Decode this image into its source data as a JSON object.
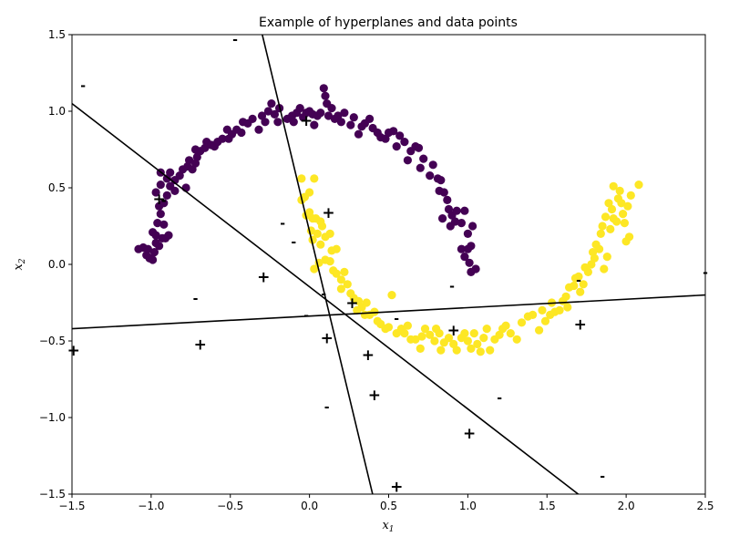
{
  "chart_data": {
    "type": "scatter",
    "title": "Example of hyperplanes and data points",
    "xlabel": "x",
    "xlabel_sub": "1",
    "ylabel": "x",
    "ylabel_sub": "2",
    "xlim": [
      -1.5,
      2.5
    ],
    "ylim": [
      -1.5,
      1.5
    ],
    "xticks": [
      -1.5,
      -1.0,
      -0.5,
      0.0,
      0.5,
      1.0,
      1.5,
      2.0,
      2.5
    ],
    "yticks": [
      -1.5,
      -1.0,
      -0.5,
      0.0,
      0.5,
      1.0,
      1.5
    ],
    "grid": false,
    "legend": "none",
    "colors": {
      "class0": "#440154",
      "class1": "#fde725",
      "lines": "#000000",
      "markers": "#000000"
    },
    "series": [
      {
        "class": 0,
        "color": "#440154",
        "points": [
          [
            -1.08,
            0.1
          ],
          [
            -1.05,
            0.11
          ],
          [
            -1.03,
            0.06
          ],
          [
            -1.02,
            0.1
          ],
          [
            -1.01,
            0.04
          ],
          [
            -0.99,
            0.03
          ],
          [
            -0.98,
            0.08
          ],
          [
            -0.97,
            0.14
          ],
          [
            -0.99,
            0.21
          ],
          [
            -0.97,
            0.19
          ],
          [
            -0.95,
            0.12
          ],
          [
            -0.93,
            0.17
          ],
          [
            -0.91,
            0.17
          ],
          [
            -0.89,
            0.19
          ],
          [
            -0.96,
            0.27
          ],
          [
            -0.94,
            0.33
          ],
          [
            -0.92,
            0.26
          ],
          [
            -0.95,
            0.38
          ],
          [
            -0.97,
            0.47
          ],
          [
            -0.92,
            0.4
          ],
          [
            -0.9,
            0.45
          ],
          [
            -0.94,
            0.52
          ],
          [
            -0.9,
            0.56
          ],
          [
            -0.94,
            0.6
          ],
          [
            -0.88,
            0.51
          ],
          [
            -0.85,
            0.48
          ],
          [
            -0.88,
            0.6
          ],
          [
            -0.85,
            0.55
          ],
          [
            -0.82,
            0.58
          ],
          [
            -0.78,
            0.5
          ],
          [
            -0.8,
            0.62
          ],
          [
            -0.77,
            0.64
          ],
          [
            -0.74,
            0.62
          ],
          [
            -0.76,
            0.68
          ],
          [
            -0.72,
            0.66
          ],
          [
            -0.71,
            0.7
          ],
          [
            -0.72,
            0.75
          ],
          [
            -0.69,
            0.74
          ],
          [
            -0.66,
            0.76
          ],
          [
            -0.65,
            0.8
          ],
          [
            -0.62,
            0.78
          ],
          [
            -0.6,
            0.77
          ],
          [
            -0.58,
            0.8
          ],
          [
            -0.55,
            0.82
          ],
          [
            -0.51,
            0.82
          ],
          [
            -0.52,
            0.88
          ],
          [
            -0.49,
            0.85
          ],
          [
            -0.46,
            0.88
          ],
          [
            -0.43,
            0.86
          ],
          [
            -0.42,
            0.93
          ],
          [
            -0.39,
            0.92
          ],
          [
            -0.36,
            0.95
          ],
          [
            -0.32,
            0.88
          ],
          [
            -0.3,
            0.97
          ],
          [
            -0.28,
            0.93
          ],
          [
            -0.26,
            1.0
          ],
          [
            -0.24,
            1.05
          ],
          [
            -0.22,
            0.98
          ],
          [
            -0.2,
            0.93
          ],
          [
            -0.19,
            1.02
          ],
          [
            -0.14,
            0.95
          ],
          [
            -0.11,
            0.97
          ],
          [
            -0.1,
            0.93
          ],
          [
            -0.08,
            0.99
          ],
          [
            -0.06,
            1.02
          ],
          [
            -0.04,
            0.96
          ],
          [
            -0.02,
            0.99
          ],
          [
            0.0,
            1.0
          ],
          [
            0.02,
            0.98
          ],
          [
            0.03,
            0.91
          ],
          [
            0.05,
            0.97
          ],
          [
            0.07,
            0.99
          ],
          [
            0.09,
            1.15
          ],
          [
            0.1,
            1.1
          ],
          [
            0.11,
            1.05
          ],
          [
            0.12,
            0.97
          ],
          [
            0.14,
            1.02
          ],
          [
            0.16,
            0.95
          ],
          [
            0.18,
            0.97
          ],
          [
            0.2,
            0.93
          ],
          [
            0.22,
            0.99
          ],
          [
            0.26,
            0.91
          ],
          [
            0.28,
            0.96
          ],
          [
            0.31,
            0.85
          ],
          [
            0.33,
            0.9
          ],
          [
            0.35,
            0.92
          ],
          [
            0.38,
            0.95
          ],
          [
            0.4,
            0.89
          ],
          [
            0.43,
            0.86
          ],
          [
            0.45,
            0.83
          ],
          [
            0.48,
            0.82
          ],
          [
            0.5,
            0.86
          ],
          [
            0.53,
            0.87
          ],
          [
            0.55,
            0.77
          ],
          [
            0.57,
            0.84
          ],
          [
            0.6,
            0.8
          ],
          [
            0.62,
            0.68
          ],
          [
            0.64,
            0.74
          ],
          [
            0.67,
            0.77
          ],
          [
            0.69,
            0.76
          ],
          [
            0.7,
            0.63
          ],
          [
            0.72,
            0.69
          ],
          [
            0.76,
            0.58
          ],
          [
            0.78,
            0.65
          ],
          [
            0.81,
            0.56
          ],
          [
            0.83,
            0.55
          ],
          [
            0.82,
            0.48
          ],
          [
            0.85,
            0.47
          ],
          [
            0.87,
            0.42
          ],
          [
            0.88,
            0.36
          ],
          [
            0.84,
            0.3
          ],
          [
            0.9,
            0.32
          ],
          [
            0.93,
            0.35
          ],
          [
            0.89,
            0.25
          ],
          [
            0.92,
            0.28
          ],
          [
            0.96,
            0.27
          ],
          [
            0.98,
            0.35
          ],
          [
            1.0,
            0.2
          ],
          [
            1.03,
            0.25
          ],
          [
            0.96,
            0.1
          ],
          [
            1.0,
            0.1
          ],
          [
            1.02,
            0.12
          ],
          [
            0.98,
            0.05
          ],
          [
            1.01,
            0.01
          ],
          [
            1.05,
            -0.03
          ],
          [
            1.02,
            -0.05
          ]
        ]
      },
      {
        "class": 1,
        "color": "#fde725",
        "points": [
          [
            -0.05,
            0.56
          ],
          [
            0.03,
            0.56
          ],
          [
            -0.03,
            0.44
          ],
          [
            0.0,
            0.47
          ],
          [
            -0.05,
            0.42
          ],
          [
            0.0,
            0.34
          ],
          [
            0.02,
            0.3
          ],
          [
            -0.02,
            0.32
          ],
          [
            0.04,
            0.3
          ],
          [
            0.07,
            0.28
          ],
          [
            0.01,
            0.22
          ],
          [
            0.05,
            0.2
          ],
          [
            0.08,
            0.25
          ],
          [
            0.02,
            0.16
          ],
          [
            0.07,
            0.13
          ],
          [
            0.1,
            0.18
          ],
          [
            0.13,
            0.2
          ],
          [
            0.14,
            0.09
          ],
          [
            0.17,
            0.1
          ],
          [
            0.1,
            0.03
          ],
          [
            0.13,
            0.02
          ],
          [
            0.15,
            -0.04
          ],
          [
            0.06,
            0.01
          ],
          [
            0.03,
            -0.03
          ],
          [
            0.17,
            -0.06
          ],
          [
            0.2,
            -0.1
          ],
          [
            0.22,
            -0.05
          ],
          [
            0.24,
            -0.13
          ],
          [
            0.2,
            -0.16
          ],
          [
            0.26,
            -0.19
          ],
          [
            0.28,
            -0.22
          ],
          [
            0.31,
            -0.24
          ],
          [
            0.33,
            -0.28
          ],
          [
            0.3,
            -0.3
          ],
          [
            0.36,
            -0.25
          ],
          [
            0.38,
            -0.33
          ],
          [
            0.35,
            -0.33
          ],
          [
            0.41,
            -0.31
          ],
          [
            0.43,
            -0.37
          ],
          [
            0.45,
            -0.39
          ],
          [
            0.48,
            -0.42
          ],
          [
            0.5,
            -0.41
          ],
          [
            0.52,
            -0.2
          ],
          [
            0.55,
            -0.45
          ],
          [
            0.58,
            -0.42
          ],
          [
            0.6,
            -0.45
          ],
          [
            0.62,
            -0.4
          ],
          [
            0.64,
            -0.49
          ],
          [
            0.67,
            -0.49
          ],
          [
            0.7,
            -0.55
          ],
          [
            0.71,
            -0.47
          ],
          [
            0.73,
            -0.42
          ],
          [
            0.76,
            -0.46
          ],
          [
            0.79,
            -0.5
          ],
          [
            0.8,
            -0.42
          ],
          [
            0.82,
            -0.45
          ],
          [
            0.83,
            -0.56
          ],
          [
            0.85,
            -0.51
          ],
          [
            0.88,
            -0.48
          ],
          [
            0.91,
            -0.52
          ],
          [
            0.93,
            -0.56
          ],
          [
            0.96,
            -0.48
          ],
          [
            0.98,
            -0.45
          ],
          [
            1.0,
            -0.5
          ],
          [
            1.02,
            -0.55
          ],
          [
            1.04,
            -0.45
          ],
          [
            1.06,
            -0.52
          ],
          [
            1.08,
            -0.57
          ],
          [
            1.1,
            -0.48
          ],
          [
            1.12,
            -0.42
          ],
          [
            1.14,
            -0.56
          ],
          [
            1.17,
            -0.49
          ],
          [
            1.2,
            -0.46
          ],
          [
            1.22,
            -0.42
          ],
          [
            1.24,
            -0.4
          ],
          [
            1.27,
            -0.45
          ],
          [
            1.31,
            -0.49
          ],
          [
            1.34,
            -0.38
          ],
          [
            1.38,
            -0.34
          ],
          [
            1.41,
            -0.33
          ],
          [
            1.45,
            -0.43
          ],
          [
            1.47,
            -0.3
          ],
          [
            1.49,
            -0.37
          ],
          [
            1.52,
            -0.33
          ],
          [
            1.53,
            -0.25
          ],
          [
            1.55,
            -0.31
          ],
          [
            1.58,
            -0.3
          ],
          [
            1.6,
            -0.24
          ],
          [
            1.62,
            -0.21
          ],
          [
            1.63,
            -0.28
          ],
          [
            1.64,
            -0.15
          ],
          [
            1.67,
            -0.14
          ],
          [
            1.68,
            -0.09
          ],
          [
            1.7,
            -0.08
          ],
          [
            1.71,
            -0.18
          ],
          [
            1.73,
            -0.13
          ],
          [
            1.74,
            -0.02
          ],
          [
            1.76,
            -0.05
          ],
          [
            1.78,
            0.0
          ],
          [
            1.79,
            0.08
          ],
          [
            1.8,
            0.04
          ],
          [
            1.81,
            0.13
          ],
          [
            1.83,
            0.1
          ],
          [
            1.84,
            0.2
          ],
          [
            1.85,
            0.25
          ],
          [
            1.87,
            0.31
          ],
          [
            1.88,
            0.05
          ],
          [
            1.9,
            0.23
          ],
          [
            1.91,
            0.36
          ],
          [
            1.92,
            0.3
          ],
          [
            1.94,
            0.28
          ],
          [
            1.95,
            0.43
          ],
          [
            1.97,
            0.4
          ],
          [
            1.98,
            0.33
          ],
          [
            2.0,
            0.15
          ],
          [
            2.01,
            0.38
          ],
          [
            2.03,
            0.45
          ],
          [
            1.92,
            0.51
          ],
          [
            1.96,
            0.48
          ],
          [
            2.08,
            0.52
          ],
          [
            1.89,
            0.4
          ],
          [
            2.02,
            0.18
          ],
          [
            1.86,
            -0.03
          ],
          [
            1.99,
            0.27
          ]
        ]
      }
    ],
    "hyperplanes": [
      {
        "p1": [
          -0.31,
          1.55
        ],
        "p2": [
          0.41,
          -1.55
        ]
      },
      {
        "p1": [
          -1.5,
          1.05
        ],
        "p2": [
          1.76,
          -1.55
        ]
      },
      {
        "p1": [
          -1.5,
          -0.42
        ],
        "p2": [
          2.5,
          -0.2
        ]
      }
    ],
    "markers": [
      {
        "symbol": "+",
        "x": -1.49,
        "y": -0.56
      },
      {
        "symbol": "+",
        "x": -0.95,
        "y": 0.43
      },
      {
        "symbol": "+",
        "x": -0.69,
        "y": -0.52
      },
      {
        "symbol": "+",
        "x": -0.29,
        "y": -0.08
      },
      {
        "symbol": "+",
        "x": -0.02,
        "y": 0.94
      },
      {
        "symbol": "+",
        "x": 0.12,
        "y": 0.34
      },
      {
        "symbol": "+",
        "x": 0.11,
        "y": -0.48
      },
      {
        "symbol": "+",
        "x": 0.27,
        "y": -0.25
      },
      {
        "symbol": "+",
        "x": 0.37,
        "y": -0.59
      },
      {
        "symbol": "+",
        "x": 0.41,
        "y": -0.85
      },
      {
        "symbol": "+",
        "x": 0.55,
        "y": -1.45
      },
      {
        "symbol": "+",
        "x": 0.91,
        "y": -0.43
      },
      {
        "symbol": "+",
        "x": 1.01,
        "y": -1.1
      },
      {
        "symbol": "+",
        "x": 1.71,
        "y": -0.39
      },
      {
        "symbol": "-",
        "x": -1.43,
        "y": 1.17
      },
      {
        "symbol": "-",
        "x": -0.47,
        "y": 1.47
      },
      {
        "symbol": "-",
        "x": -0.92,
        "y": 0.42
      },
      {
        "symbol": "-",
        "x": -0.72,
        "y": -0.22
      },
      {
        "symbol": "-",
        "x": -0.17,
        "y": 0.27
      },
      {
        "symbol": "-",
        "x": -0.1,
        "y": 0.15
      },
      {
        "symbol": "-",
        "x": 0.09,
        "y": -0.19
      },
      {
        "symbol": "-",
        "x": -0.02,
        "y": -0.33
      },
      {
        "symbol": "-",
        "x": 0.11,
        "y": -0.93
      },
      {
        "symbol": "-",
        "x": 0.55,
        "y": -0.35
      },
      {
        "symbol": "-",
        "x": 0.9,
        "y": -0.14
      },
      {
        "symbol": "-",
        "x": 1.2,
        "y": -0.87
      },
      {
        "symbol": "-",
        "x": 1.7,
        "y": -0.1
      },
      {
        "symbol": "-",
        "x": 1.85,
        "y": -1.38
      },
      {
        "symbol": "-",
        "x": 2.5,
        "y": -0.05
      }
    ]
  }
}
